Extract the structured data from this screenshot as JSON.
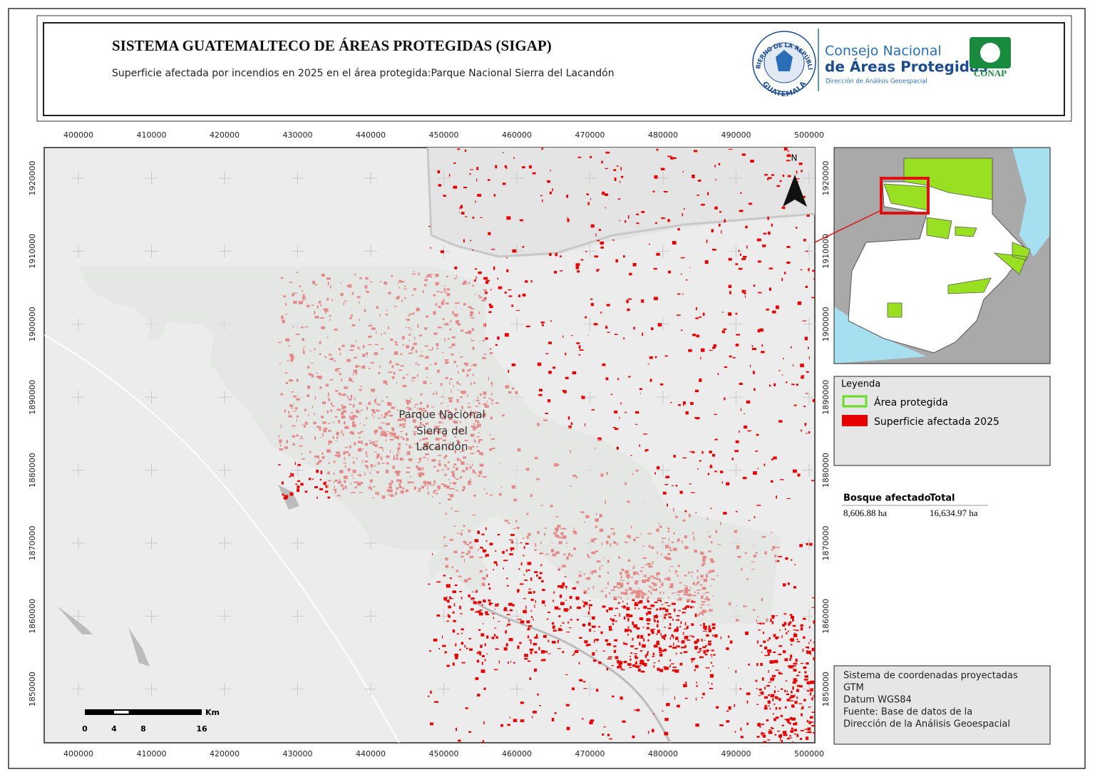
{
  "header": {
    "title": "SISTEMA GUATEMALTECO DE ÁREAS PROTEGIDAS  (SIGAP)",
    "subtitle": "Superficie afectada por incendios en 2025 en el área protegida:Parque Nacional Sierra del Lacandón"
  },
  "logo": {
    "ring_top": "GOBIERNO DE LA REPÚBLICA",
    "ring_bottom": "GUATEMALA",
    "org_line1": "Consejo Nacional",
    "org_line2": "de Áreas Protegidas",
    "org_line3": "Dirección de Análisis Geoespacial",
    "badge": "CONAP"
  },
  "map": {
    "x_ticks": [
      400000,
      410000,
      420000,
      430000,
      440000,
      450000,
      460000,
      470000,
      480000,
      490000,
      500000
    ],
    "y_ticks": [
      1920000,
      1910000,
      1900000,
      1890000,
      1880000,
      1870000,
      1860000,
      1850000
    ],
    "north": "N",
    "area_label": [
      "Parque Nacional",
      "Sierra del",
      "Lacandón"
    ]
  },
  "scale_bar": {
    "unit": "Km",
    "ticks": [
      0,
      4,
      8,
      16
    ]
  },
  "legend": {
    "title": "Leyenda",
    "items": [
      "Área protegida",
      "Superficie afectada 2025"
    ]
  },
  "summary": {
    "headers": [
      "Bosque afectado",
      "Total"
    ],
    "values": [
      "8,606.88 ha",
      "16,634.97 ha"
    ]
  },
  "info": [
    "Sistema de coordenadas proyectadas",
    "GTM",
    "Datum WGS84",
    "Fuente: Base de datos de la",
    "Dirección de la Análisis Geoespacial"
  ]
}
